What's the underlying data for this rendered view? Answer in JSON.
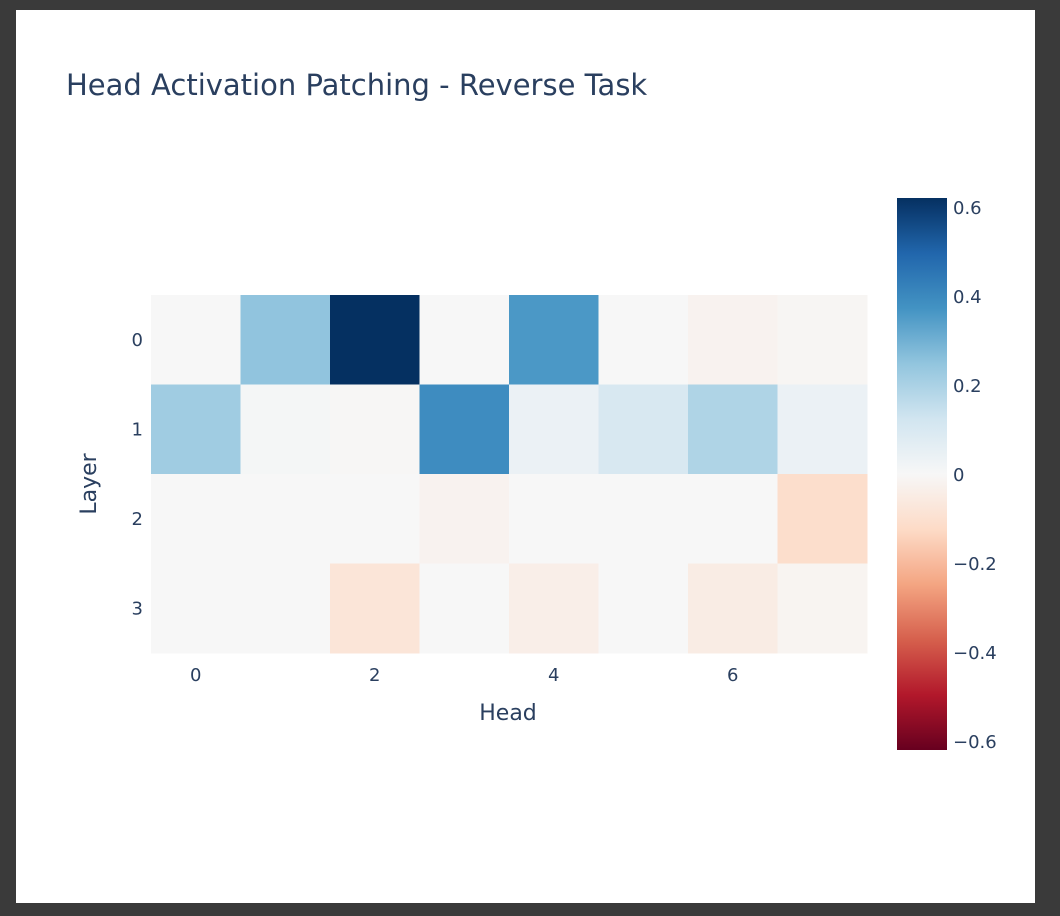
{
  "chart_data": {
    "type": "heatmap",
    "title": "Head Activation Patching - Reverse Task",
    "xlabel": "Head",
    "ylabel": "Layer",
    "x": [
      0,
      1,
      2,
      3,
      4,
      5,
      6,
      7
    ],
    "y": [
      0,
      1,
      2,
      3
    ],
    "x_tick_labels": [
      "0",
      "2",
      "4",
      "6"
    ],
    "y_tick_labels": [
      "0",
      "1",
      "2",
      "3"
    ],
    "z": [
      [
        0.0,
        0.25,
        0.62,
        0.0,
        0.36,
        0.0,
        -0.02,
        -0.01
      ],
      [
        0.22,
        0.01,
        -0.005,
        0.39,
        0.04,
        0.1,
        0.19,
        0.04
      ],
      [
        0.0,
        0.0,
        0.0,
        -0.02,
        0.0,
        0.0,
        0.0,
        -0.11
      ],
      [
        0.0,
        0.0,
        -0.08,
        0.0,
        -0.04,
        0.0,
        -0.05,
        -0.015
      ]
    ],
    "zmin": -0.62,
    "zmax": 0.62,
    "colorscale": "RdBu",
    "colorbar_tick_labels": [
      "0.6",
      "0.4",
      "0.2",
      "0",
      "−0.2",
      "−0.4",
      "−0.6"
    ],
    "colorbar_tick_values": [
      0.6,
      0.4,
      0.2,
      0,
      -0.2,
      -0.4,
      -0.6
    ],
    "colors": {
      "text": "#2a3f5f",
      "background": "#ffffff",
      "frame": "#3a3a3a",
      "scale": [
        "#67001f",
        "#b2182b",
        "#d6604d",
        "#f4a582",
        "#fddbc7",
        "#f7f7f7",
        "#d1e5f0",
        "#92c5de",
        "#4393c3",
        "#2166ac",
        "#053061"
      ]
    }
  }
}
